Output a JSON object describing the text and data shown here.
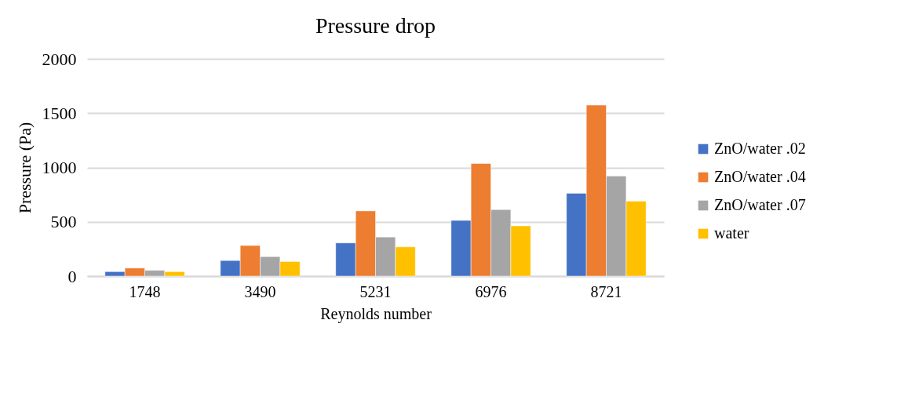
{
  "chart_data": {
    "type": "bar",
    "title": "Pressure drop",
    "xlabel": "Reynolds number",
    "ylabel": "Pressure (Pa)",
    "categories": [
      "1748",
      "3490",
      "5231",
      "6976",
      "8721"
    ],
    "series": [
      {
        "name": "ZnO/water .02",
        "color": "#4472c4",
        "values": [
          41,
          143,
          305,
          512,
          762
        ]
      },
      {
        "name": "ZnO/water .04",
        "color": "#ed7d31",
        "values": [
          74,
          281,
          600,
          1036,
          1574
        ]
      },
      {
        "name": "ZnO/water .07",
        "color": "#a5a5a5",
        "values": [
          53,
          179,
          360,
          612,
          921
        ]
      },
      {
        "name": "water",
        "color": "#ffc000",
        "values": [
          41,
          134,
          269,
          462,
          690
        ]
      }
    ],
    "ylim": [
      0,
      2000
    ],
    "yticks": [
      0,
      500,
      1000,
      1500,
      2000
    ],
    "grid": "y",
    "legend": "right"
  }
}
